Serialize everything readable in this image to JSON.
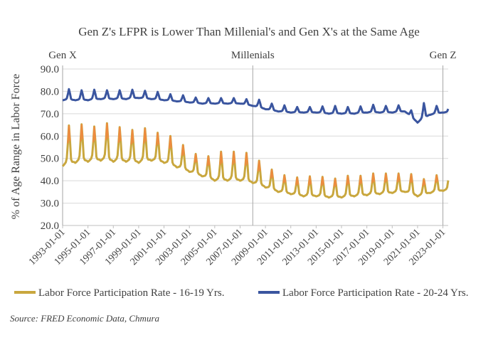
{
  "chart_data": {
    "type": "line",
    "title": "Gen Z's LFPR is Lower Than Millenial's and Gen X's at the Same Age",
    "ylabel": "% of Age Range in Labor Force",
    "xlabel": "",
    "ylim": [
      20.0,
      90.0
    ],
    "yticks": [
      "20.0",
      "30.0",
      "40.0",
      "50.0",
      "60.0",
      "70.0",
      "80.0",
      "90.0"
    ],
    "xticks": [
      "1993-01-01",
      "1995-01-01",
      "1997-01-01",
      "1999-01-01",
      "2001-01-01",
      "2003-01-01",
      "2005-01-01",
      "2007-01-01",
      "2009-01-01",
      "2011-01-01",
      "2013-01-01",
      "2015-01-01",
      "2017-01-01",
      "2019-01-01",
      "2021-01-01",
      "2023-01-01"
    ],
    "x_range": [
      "1993-01-01",
      "2023-06-01"
    ],
    "frequency": "monthly, not seasonally adjusted",
    "grid": "horizontal",
    "legend_position": "bottom",
    "generation_markers": [
      {
        "label": "Gen X",
        "date": "1993-01-01"
      },
      {
        "label": "Millenials",
        "date": "2008-01-01"
      },
      {
        "label": "Gen Z",
        "date": "2023-01-01"
      }
    ],
    "series": [
      {
        "name": "Labor Force Participation Rate - 16-19 Yrs.",
        "color": "#C9A73E",
        "summer_peak_color": "#EE8A40",
        "annual_winter_baseline": [
          46.5,
          48,
          48.5,
          49,
          48.5,
          48.5,
          48,
          49,
          48,
          46,
          44,
          42,
          40,
          40,
          40,
          39,
          37,
          35,
          34,
          33,
          33,
          32.5,
          32.5,
          33,
          33.5,
          34,
          34.5,
          35,
          33,
          34.5,
          35.5
        ],
        "annual_july_peak": [
          64,
          65,
          64,
          66,
          64,
          63,
          63,
          62,
          61,
          57,
          53,
          52,
          53,
          53,
          53,
          50,
          46,
          43,
          42,
          42,
          42,
          41,
          42,
          42,
          43,
          43,
          43,
          44,
          40,
          42,
          44
        ]
      },
      {
        "name": "Labor Force Participation Rate - 20-24 Yrs.",
        "color": "#3A559F",
        "annual_winter_baseline": [
          76,
          76,
          76,
          76.5,
          76.5,
          76.5,
          77,
          76.5,
          76,
          75.5,
          75,
          74.5,
          74.5,
          74.5,
          74.5,
          73.5,
          72,
          71,
          70.5,
          70.5,
          70.5,
          70,
          70,
          70,
          70.5,
          70.5,
          70.5,
          71,
          66,
          69.5,
          70.5
        ],
        "annual_july_peak": [
          81,
          80.5,
          80.5,
          80.5,
          80.5,
          80.5,
          80.5,
          80,
          79,
          78.5,
          77.5,
          77,
          77,
          77,
          77,
          77,
          75,
          74,
          73,
          73,
          73.5,
          73.5,
          73,
          73,
          74,
          73.5,
          73.5,
          74,
          73,
          73,
          73.5
        ]
      }
    ]
  },
  "source": "Source: FRED Economic Data, Chmura"
}
